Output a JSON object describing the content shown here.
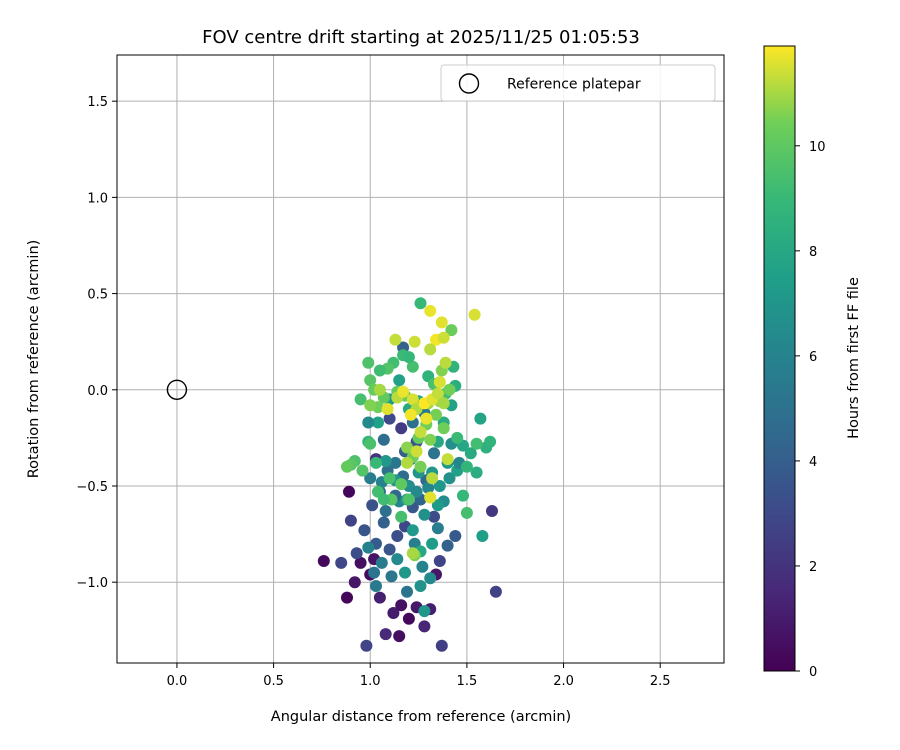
{
  "chart_data": {
    "type": "scatter",
    "title": "FOV centre drift starting at 2025/11/25 01:05:53",
    "xlabel": "Angular distance from reference (arcmin)",
    "ylabel": "Rotation from reference (arcmin)",
    "xlim": [
      -0.31,
      2.83
    ],
    "ylim": [
      -1.42,
      1.74
    ],
    "xticks": [
      0.0,
      0.5,
      1.0,
      1.5,
      2.0,
      2.5
    ],
    "xtick_labels": [
      "0.0",
      "0.5",
      "1.0",
      "1.5",
      "2.0",
      "2.5"
    ],
    "yticks": [
      -1.0,
      -0.5,
      0.0,
      0.5,
      1.0,
      1.5
    ],
    "ytick_labels": [
      "−1.0",
      "−0.5",
      "0.0",
      "0.5",
      "1.0",
      "1.5"
    ],
    "grid": true,
    "legend": {
      "location": "top-right",
      "entries": [
        {
          "label": "Reference platepar",
          "marker": "open-circle"
        }
      ]
    },
    "colormap": "viridis",
    "colorbar": {
      "label": "Hours from first FF file",
      "range": [
        0,
        11.9
      ],
      "ticks": [
        0,
        2,
        4,
        6,
        8,
        10
      ],
      "tick_labels": [
        "0",
        "2",
        "4",
        "6",
        "8",
        "10"
      ]
    },
    "reference_point": {
      "x": 0.0,
      "y": 0.0
    },
    "points": [
      [
        0.76,
        -0.89,
        0.3
      ],
      [
        0.89,
        -0.53,
        0.2
      ],
      [
        0.88,
        -1.08,
        0.2
      ],
      [
        0.92,
        -1.0,
        0.8
      ],
      [
        0.95,
        -0.9,
        0.5
      ],
      [
        1.0,
        -0.96,
        0.4
      ],
      [
        1.02,
        -0.88,
        0.7
      ],
      [
        1.05,
        -1.08,
        1.2
      ],
      [
        1.08,
        -1.27,
        1.6
      ],
      [
        1.12,
        -1.16,
        1.0
      ],
      [
        1.16,
        -1.12,
        0.6
      ],
      [
        1.2,
        -1.19,
        0.3
      ],
      [
        1.24,
        -1.13,
        0.9
      ],
      [
        1.28,
        -1.23,
        1.4
      ],
      [
        1.31,
        -1.14,
        1.1
      ],
      [
        1.34,
        -0.96,
        0.8
      ],
      [
        1.15,
        -1.28,
        0.5
      ],
      [
        0.98,
        -1.33,
        2.8
      ],
      [
        1.37,
        -1.33,
        2.5
      ],
      [
        1.65,
        -1.05,
        2.6
      ],
      [
        1.63,
        -0.63,
        2.2
      ],
      [
        0.85,
        -0.9,
        2.9
      ],
      [
        0.9,
        -0.68,
        2.7
      ],
      [
        0.93,
        -0.85,
        3.2
      ],
      [
        0.97,
        -0.73,
        3.5
      ],
      [
        1.03,
        -0.8,
        3.9
      ],
      [
        1.07,
        -0.69,
        4.1
      ],
      [
        1.1,
        -0.83,
        3.6
      ],
      [
        1.14,
        -0.76,
        3.3
      ],
      [
        1.18,
        -0.71,
        2.9
      ],
      [
        1.22,
        -0.61,
        3.7
      ],
      [
        1.26,
        -0.57,
        4.3
      ],
      [
        1.29,
        -0.47,
        4.6
      ],
      [
        1.33,
        -0.66,
        3.1
      ],
      [
        1.36,
        -0.89,
        2.7
      ],
      [
        1.4,
        -0.81,
        4.2
      ],
      [
        1.44,
        -0.76,
        3.8
      ],
      [
        1.05,
        -0.53,
        4.5
      ],
      [
        1.09,
        -0.42,
        4.9
      ],
      [
        1.13,
        -0.38,
        5.2
      ],
      [
        1.17,
        -0.45,
        4.7
      ],
      [
        1.21,
        -0.36,
        5.4
      ],
      [
        1.02,
        -0.95,
        5.2
      ],
      [
        1.06,
        -0.9,
        5.6
      ],
      [
        0.99,
        -0.82,
        5.9
      ],
      [
        1.11,
        -0.97,
        5.3
      ],
      [
        1.19,
        -1.05,
        5.1
      ],
      [
        1.03,
        -1.02,
        5.5
      ],
      [
        1.23,
        -0.8,
        5.8
      ],
      [
        1.27,
        -0.92,
        6.0
      ],
      [
        1.31,
        -0.98,
        6.3
      ],
      [
        1.35,
        -0.72,
        5.7
      ],
      [
        1.3,
        -0.51,
        6.1
      ],
      [
        1.38,
        -0.58,
        6.5
      ],
      [
        1.41,
        -0.46,
        6.8
      ],
      [
        1.15,
        -0.58,
        6.2
      ],
      [
        1.2,
        -0.5,
        6.6
      ],
      [
        1.25,
        -0.43,
        6.9
      ],
      [
        1.08,
        -0.63,
        5.0
      ],
      [
        1.13,
        -0.55,
        4.4
      ],
      [
        1.01,
        -0.6,
        3.4
      ],
      [
        1.18,
        -0.32,
        4.0
      ],
      [
        1.24,
        -0.27,
        3.6
      ],
      [
        1.1,
        -0.15,
        3.0
      ],
      [
        1.16,
        -0.2,
        2.4
      ],
      [
        1.03,
        -0.36,
        2.0
      ],
      [
        1.07,
        -0.26,
        4.8
      ],
      [
        1.22,
        -0.17,
        5.0
      ],
      [
        1.28,
        -0.12,
        5.4
      ],
      [
        1.33,
        -0.33,
        5.1
      ],
      [
        1.17,
        0.22,
        4.2
      ],
      [
        1.0,
        -0.46,
        5.6
      ],
      [
        1.06,
        -0.48,
        6.0
      ],
      [
        1.14,
        -0.88,
        6.4
      ],
      [
        1.26,
        -1.02,
        6.8
      ],
      [
        1.28,
        -1.15,
        7.0
      ],
      [
        1.22,
        -0.73,
        7.2
      ],
      [
        1.32,
        -0.8,
        7.4
      ],
      [
        1.36,
        -0.5,
        7.0
      ],
      [
        1.4,
        -0.38,
        7.3
      ],
      [
        1.45,
        -0.42,
        7.6
      ],
      [
        1.48,
        -0.29,
        7.9
      ],
      [
        1.52,
        -0.33,
        8.1
      ],
      [
        1.55,
        -0.43,
        8.3
      ],
      [
        1.57,
        -0.15,
        7.8
      ],
      [
        1.6,
        -0.3,
        8.5
      ],
      [
        1.62,
        -0.27,
        8.7
      ],
      [
        1.58,
        -0.76,
        7.5
      ],
      [
        1.35,
        -0.27,
        8.0
      ],
      [
        1.38,
        -0.17,
        8.2
      ],
      [
        1.42,
        -0.08,
        7.7
      ],
      [
        1.44,
        0.02,
        8.4
      ],
      [
        1.3,
        0.07,
        8.6
      ],
      [
        1.25,
        -0.06,
        7.9
      ],
      [
        1.2,
        -0.1,
        8.1
      ],
      [
        1.15,
        0.05,
        7.6
      ],
      [
        1.1,
        -0.05,
        7.3
      ],
      [
        1.32,
        -0.43,
        7.1
      ],
      [
        1.35,
        -0.6,
        7.3
      ],
      [
        1.28,
        -0.65,
        6.7
      ],
      [
        1.24,
        -0.53,
        6.4
      ],
      [
        1.19,
        -0.57,
        7.8
      ],
      [
        1.26,
        -0.84,
        8.0
      ],
      [
        1.18,
        -0.95,
        7.0
      ],
      [
        1.13,
        -0.47,
        6.9
      ],
      [
        1.08,
        -0.37,
        7.1
      ],
      [
        1.04,
        -0.17,
        7.6
      ],
      [
        0.99,
        -0.17,
        6.3
      ],
      [
        1.42,
        -0.28,
        6.6
      ],
      [
        1.46,
        -0.38,
        6.1
      ],
      [
        1.48,
        -0.55,
        8.9
      ],
      [
        1.5,
        -0.64,
        9.4
      ],
      [
        1.45,
        -0.25,
        9.1
      ],
      [
        1.5,
        -0.4,
        8.8
      ],
      [
        1.55,
        -0.28,
        9.3
      ],
      [
        1.43,
        0.12,
        8.7
      ],
      [
        1.39,
        -0.02,
        9.2
      ],
      [
        1.33,
        0.03,
        9.5
      ],
      [
        1.26,
        0.45,
        9.0
      ],
      [
        1.22,
        0.12,
        9.4
      ],
      [
        1.12,
        0.14,
        9.3
      ],
      [
        1.09,
        0.11,
        9.7
      ],
      [
        1.05,
        0.1,
        9.2
      ],
      [
        0.99,
        0.14,
        9.6
      ],
      [
        1.17,
        0.18,
        9.1
      ],
      [
        1.2,
        0.17,
        8.9
      ],
      [
        1.0,
        0.05,
        9.8
      ],
      [
        0.95,
        -0.05,
        9.4
      ],
      [
        0.99,
        -0.27,
        8.8
      ],
      [
        1.03,
        -0.38,
        9.0
      ],
      [
        0.92,
        -0.37,
        9.6
      ],
      [
        0.9,
        -0.39,
        9.9
      ],
      [
        0.88,
        -0.4,
        10.1
      ],
      [
        0.96,
        -0.42,
        9.7
      ],
      [
        1.04,
        -0.53,
        9.3
      ],
      [
        1.1,
        -0.46,
        9.5
      ],
      [
        1.16,
        -0.49,
        10.0
      ],
      [
        1.16,
        -0.66,
        9.4
      ],
      [
        1.2,
        -0.57,
        9.6
      ],
      [
        1.11,
        -0.57,
        9.8
      ],
      [
        1.07,
        -0.57,
        9.2
      ],
      [
        1.0,
        -0.28,
        9.5
      ],
      [
        1.23,
        -0.86,
        10.6
      ],
      [
        1.26,
        -0.4,
        10.5
      ],
      [
        1.22,
        -0.35,
        10.4
      ],
      [
        1.19,
        -0.3,
        10.7
      ],
      [
        1.18,
        -0.03,
        10.3
      ],
      [
        1.07,
        -0.04,
        10.1
      ],
      [
        1.04,
        -0.09,
        10.4
      ],
      [
        1.02,
        0.0,
        10.2
      ],
      [
        1.0,
        -0.08,
        10.6
      ],
      [
        1.14,
        -0.01,
        10.2
      ],
      [
        1.29,
        -0.18,
        10.4
      ],
      [
        1.25,
        -0.25,
        10.2
      ],
      [
        1.31,
        -0.26,
        10.6
      ],
      [
        1.36,
        -0.06,
        10.8
      ],
      [
        1.38,
        -0.2,
        10.4
      ],
      [
        1.34,
        -0.13,
        10.5
      ],
      [
        1.3,
        -0.07,
        10.9
      ],
      [
        1.37,
        0.1,
        10.6
      ],
      [
        1.41,
        0.0,
        10.4
      ],
      [
        1.42,
        0.31,
        10.3
      ],
      [
        1.13,
        0.26,
        11.3
      ],
      [
        1.23,
        0.25,
        11.4
      ],
      [
        1.31,
        0.41,
        11.7
      ],
      [
        1.37,
        0.35,
        11.6
      ],
      [
        1.34,
        0.26,
        11.8
      ],
      [
        1.38,
        0.27,
        11.4
      ],
      [
        1.54,
        0.39,
        11.5
      ],
      [
        1.31,
        0.21,
        11.2
      ],
      [
        1.05,
        0.0,
        11.0
      ],
      [
        1.09,
        -0.1,
        11.6
      ],
      [
        1.14,
        -0.04,
        11.2
      ],
      [
        1.17,
        -0.01,
        11.7
      ],
      [
        1.22,
        -0.05,
        11.5
      ],
      [
        1.24,
        -0.1,
        11.1
      ],
      [
        1.21,
        -0.13,
        11.8
      ],
      [
        1.26,
        -0.22,
        11.3
      ],
      [
        1.28,
        -0.07,
        11.9
      ],
      [
        1.32,
        -0.05,
        11.6
      ],
      [
        1.35,
        -0.02,
        11.3
      ],
      [
        1.38,
        -0.07,
        11.0
      ],
      [
        1.36,
        0.04,
        11.5
      ],
      [
        1.39,
        0.14,
        11.2
      ],
      [
        1.29,
        -0.15,
        11.7
      ],
      [
        1.24,
        -0.32,
        11.4
      ],
      [
        1.19,
        -0.38,
        11.1
      ],
      [
        1.31,
        -0.56,
        11.6
      ],
      [
        1.32,
        -0.46,
        11.2
      ],
      [
        1.4,
        -0.36,
        11.3
      ],
      [
        1.22,
        -0.85,
        11.0
      ]
    ]
  }
}
